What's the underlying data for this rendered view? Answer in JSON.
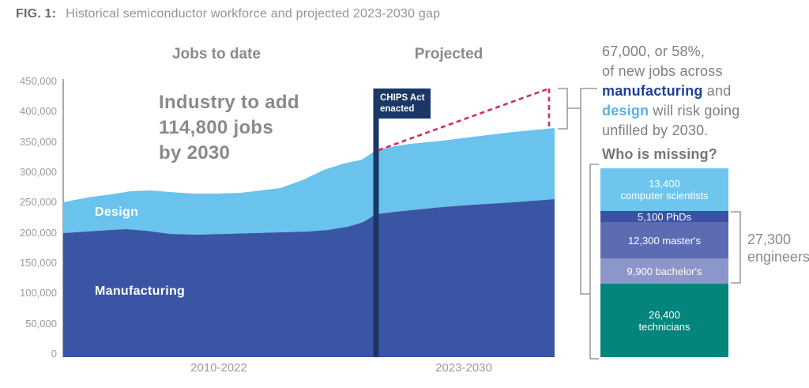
{
  "figure": {
    "fig_label": "FIG. 1:",
    "title": "Historical semiconductor workforce and projected 2023-2030 gap"
  },
  "sections": {
    "left": "Jobs to date",
    "right": "Projected"
  },
  "annotation": {
    "line1": "Industry to add",
    "line2": "114,800 jobs",
    "line3": "by 2030"
  },
  "flag": {
    "line1": "CHIPS Act",
    "line2": "enacted"
  },
  "series_labels": {
    "design": "Design",
    "manufacturing": "Manufacturing"
  },
  "x_axis": {
    "left": "2010-2022",
    "right": "2023-2030"
  },
  "y_axis": {
    "ticks": [
      "0",
      "50,000",
      "100,000",
      "150,000",
      "200,000",
      "250,000",
      "300,000",
      "350,000",
      "400,000",
      "450,000"
    ]
  },
  "gap_note": {
    "line1": "67,000, or 58%,",
    "line2": "of new jobs across",
    "line3_bold": "manufacturing",
    "line3_rest": " and",
    "line4_bold": "design",
    "line4_rest": " will risk going",
    "line5": "unfilled by 2030."
  },
  "missing": {
    "heading": "Who is missing?",
    "segments": [
      {
        "value": 13400,
        "lines": [
          "13,400",
          "computer scientists"
        ],
        "color": "#6ec6ee",
        "h": 54
      },
      {
        "value": 5100,
        "lines": [
          "5,100 PhDs"
        ],
        "color": "#3b51a3",
        "h": 14
      },
      {
        "value": 12300,
        "lines": [
          "12,300 master's"
        ],
        "color": "#5c6bb2",
        "h": 46
      },
      {
        "value": 9900,
        "lines": [
          "9,900 bachelor's"
        ],
        "color": "#8c96c9",
        "h": 32
      },
      {
        "value": 26400,
        "lines": [
          "26,400",
          "technicians"
        ],
        "color": "#03857b",
        "h": 93
      }
    ],
    "engineers_note": {
      "line1": "27,300",
      "line2": "engineers",
      "value": 27300
    }
  },
  "colors": {
    "design": "#69c3ec",
    "manufacturing": "#3a55a4",
    "chips_navy": "#1a3765",
    "demand_pink": "#d2286e",
    "bracket_gray": "#9c9c9c",
    "axis_gray": "#ababab"
  },
  "chart_data": [
    {
      "type": "area",
      "title": "Historical semiconductor workforce and projected 2023-2030 gap",
      "subtitle_sections": [
        "Jobs to date",
        "Projected"
      ],
      "xlabel_sections": [
        "2010-2022",
        "2023-2030"
      ],
      "ylim": [
        0,
        450000
      ],
      "y_tick_step": 50000,
      "grid": false,
      "legend_position": "labels-inside-areas",
      "x": [
        2010,
        2012,
        2013,
        2015,
        2017,
        2018,
        2020,
        2021,
        2023,
        2024,
        2025,
        2026,
        2028,
        2030
      ],
      "series": [
        {
          "name": "Manufacturing",
          "stacked": true,
          "values": [
            199000,
            204000,
            203000,
            196000,
            198000,
            200000,
            203000,
            213000,
            230000,
            237000,
            242000,
            246000,
            250000,
            255000
          ]
        },
        {
          "name": "Design",
          "stacked": true,
          "values": [
            51000,
            59000,
            66000,
            68000,
            67000,
            73000,
            100000,
            106000,
            106000,
            109000,
            109000,
            112000,
            115000,
            117000
          ]
        }
      ],
      "total_workforce": [
        250000,
        263000,
        269000,
        264000,
        265000,
        273000,
        303000,
        319000,
        336000,
        346000,
        351000,
        358000,
        365000,
        372000
      ],
      "demand_line": {
        "style": "dashed",
        "start": {
          "year": 2023,
          "value": 336000
        },
        "end": {
          "year": 2030,
          "value": 438000
        }
      },
      "event_marker": {
        "label": "CHIPS Act enacted",
        "year": 2023
      },
      "annotations": [
        "Industry to add 114,800 jobs by 2030",
        "67,000, or 58%, of new jobs across manufacturing and design will risk going unfilled by 2030."
      ]
    },
    {
      "type": "bar",
      "title": "Who is missing?",
      "categories": [
        "computer scientists",
        "PhDs",
        "master's",
        "bachelor's",
        "technicians"
      ],
      "values": [
        13400,
        5100,
        12300,
        9900,
        26400
      ],
      "annotation": "27,300 engineers (PhDs + master's + bachelor's)",
      "total": 67100
    }
  ]
}
